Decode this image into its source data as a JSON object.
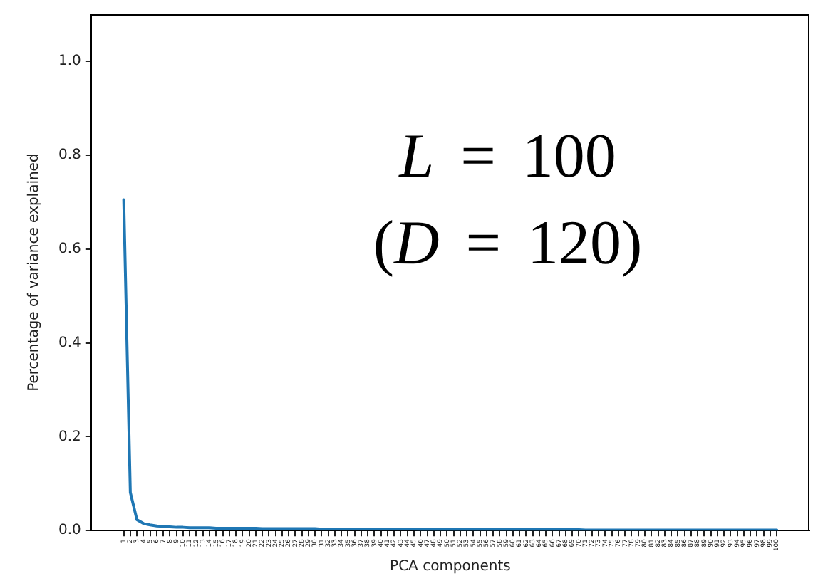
{
  "chart_data": {
    "type": "line",
    "xlabel": "PCA components",
    "ylabel": "Percentage of variance explained",
    "annotations": [
      "L = 100",
      "(D = 120)"
    ],
    "x": [
      1,
      2,
      3,
      4,
      5,
      6,
      7,
      8,
      9,
      10,
      11,
      12,
      13,
      14,
      15,
      16,
      17,
      18,
      19,
      20,
      21,
      22,
      23,
      24,
      25,
      26,
      27,
      28,
      29,
      30,
      31,
      32,
      33,
      34,
      35,
      36,
      37,
      38,
      39,
      40,
      41,
      42,
      43,
      44,
      45,
      46,
      47,
      48,
      49,
      50,
      51,
      52,
      53,
      54,
      55,
      56,
      57,
      58,
      59,
      60,
      61,
      62,
      63,
      64,
      65,
      66,
      67,
      68,
      69,
      70,
      71,
      72,
      73,
      74,
      75,
      76,
      77,
      78,
      79,
      80,
      81,
      82,
      83,
      84,
      85,
      86,
      87,
      88,
      89,
      90,
      91,
      92,
      93,
      94,
      95,
      96,
      97,
      98,
      99,
      100
    ],
    "series": [
      {
        "color": "#1f77b4",
        "values": [
          0.705,
          0.081,
          0.023,
          0.015,
          0.012,
          0.01,
          0.009,
          0.008,
          0.007,
          0.007,
          0.006,
          0.006,
          0.006,
          0.006,
          0.005,
          0.005,
          0.005,
          0.005,
          0.005,
          0.005,
          0.005,
          0.004,
          0.004,
          0.004,
          0.004,
          0.004,
          0.004,
          0.004,
          0.004,
          0.004,
          0.003,
          0.003,
          0.003,
          0.003,
          0.003,
          0.003,
          0.003,
          0.003,
          0.003,
          0.003,
          0.003,
          0.003,
          0.003,
          0.003,
          0.003,
          0.002,
          0.002,
          0.002,
          0.002,
          0.002,
          0.002,
          0.002,
          0.002,
          0.002,
          0.002,
          0.002,
          0.002,
          0.002,
          0.002,
          0.002,
          0.002,
          0.002,
          0.002,
          0.002,
          0.002,
          0.002,
          0.002,
          0.002,
          0.002,
          0.002,
          0.001,
          0.001,
          0.001,
          0.001,
          0.001,
          0.001,
          0.001,
          0.001,
          0.001,
          0.001,
          0.001,
          0.001,
          0.001,
          0.001,
          0.001,
          0.001,
          0.001,
          0.001,
          0.001,
          0.001,
          0.001,
          0.001,
          0.001,
          0.001,
          0.001,
          0.001,
          0.001,
          0.001,
          0.001,
          0.001
        ]
      }
    ],
    "xlim": [
      -3.95,
      104.95
    ],
    "xticks": [
      1,
      2,
      3,
      4,
      5,
      6,
      7,
      8,
      9,
      10,
      11,
      12,
      13,
      14,
      15,
      16,
      17,
      18,
      19,
      20,
      21,
      22,
      23,
      24,
      25,
      26,
      27,
      28,
      29,
      30,
      31,
      32,
      33,
      34,
      35,
      36,
      37,
      38,
      39,
      40,
      41,
      42,
      43,
      44,
      45,
      46,
      47,
      48,
      49,
      50,
      51,
      52,
      53,
      54,
      55,
      56,
      57,
      58,
      59,
      60,
      61,
      62,
      63,
      64,
      65,
      66,
      67,
      68,
      69,
      70,
      71,
      72,
      73,
      74,
      75,
      76,
      77,
      78,
      79,
      80,
      81,
      82,
      83,
      84,
      85,
      86,
      87,
      88,
      89,
      90,
      91,
      92,
      93,
      94,
      95,
      96,
      97,
      98,
      99,
      100
    ],
    "ylim": [
      0,
      1.1
    ],
    "yticks": [
      {
        "value": 0,
        "label": "0.0"
      },
      0.2,
      0.4,
      0.6,
      0.8,
      {
        "value": 1,
        "label": "1.0"
      }
    ],
    "grid": false,
    "legend": false,
    "marker": "none",
    "line_style": "solid"
  }
}
